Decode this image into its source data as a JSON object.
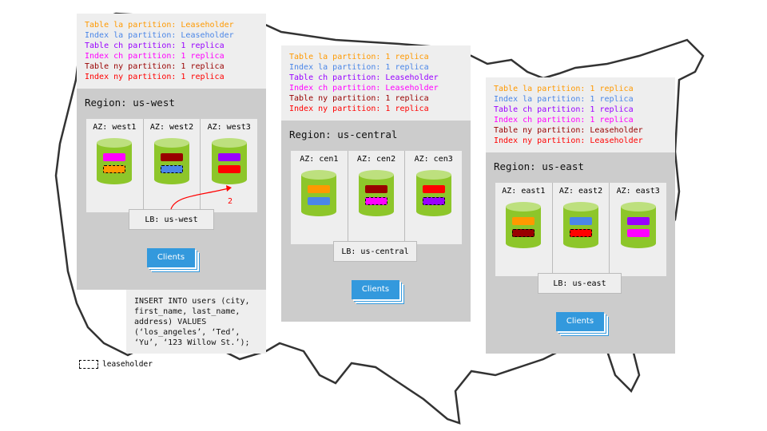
{
  "colors": {
    "la_table": "#ff9900",
    "la_index": "#4a86e8",
    "ch_table": "#9900ff",
    "ch_index": "#ff00ff",
    "ny_table": "#990000",
    "ny_index": "#ff0000",
    "node": "#8dc62a",
    "clients": "#3399dd"
  },
  "regions": [
    {
      "id": "west",
      "title": "Region: us-west",
      "lb": "LB: us-west",
      "clients": "Clients",
      "legend": [
        {
          "text": "Table la partition: Leaseholder",
          "color": "#ff9900"
        },
        {
          "text": "Index la partition: Leaseholder",
          "color": "#4a86e8"
        },
        {
          "text": "Table ch partition: 1 replica",
          "color": "#9900ff"
        },
        {
          "text": "Index ch partition: 1 replica",
          "color": "#ff00ff"
        },
        {
          "text": "Table ny partition: 1 replica",
          "color": "#990000"
        },
        {
          "text": "Index ny partition: 1 replica",
          "color": "#ff0000"
        }
      ],
      "azs": [
        {
          "label": "AZ: west1",
          "parts": [
            {
              "color": "#ff00ff",
              "leaseholder": false
            },
            {
              "color": "#ff9900",
              "leaseholder": true
            }
          ]
        },
        {
          "label": "AZ: west2",
          "parts": [
            {
              "color": "#990000",
              "leaseholder": false
            },
            {
              "color": "#4a86e8",
              "leaseholder": true
            }
          ]
        },
        {
          "label": "AZ: west3",
          "parts": [
            {
              "color": "#9900ff",
              "leaseholder": false
            },
            {
              "color": "#ff0000",
              "leaseholder": false
            }
          ]
        }
      ]
    },
    {
      "id": "central",
      "title": "Region: us-central",
      "lb": "LB: us-central",
      "clients": "Clients",
      "legend": [
        {
          "text": "Table la partition: 1 replica",
          "color": "#ff9900"
        },
        {
          "text": "Index la partition: 1 replica",
          "color": "#4a86e8"
        },
        {
          "text": "Table ch partition: Leaseholder",
          "color": "#9900ff"
        },
        {
          "text": "Index ch partition: Leaseholder",
          "color": "#ff00ff"
        },
        {
          "text": "Table ny partition: 1 replica",
          "color": "#990000"
        },
        {
          "text": "Index ny partition: 1 replica",
          "color": "#ff0000"
        }
      ],
      "azs": [
        {
          "label": "AZ: cen1",
          "parts": [
            {
              "color": "#ff9900",
              "leaseholder": false
            },
            {
              "color": "#4a86e8",
              "leaseholder": false
            }
          ]
        },
        {
          "label": "AZ: cen2",
          "parts": [
            {
              "color": "#990000",
              "leaseholder": false
            },
            {
              "color": "#ff00ff",
              "leaseholder": true
            }
          ]
        },
        {
          "label": "AZ: cen3",
          "parts": [
            {
              "color": "#ff0000",
              "leaseholder": false
            },
            {
              "color": "#9900ff",
              "leaseholder": true
            }
          ]
        }
      ]
    },
    {
      "id": "east",
      "title": "Region: us-east",
      "lb": "LB: us-east",
      "clients": "Clients",
      "legend": [
        {
          "text": "Table la partition: 1 replica",
          "color": "#ff9900"
        },
        {
          "text": "Index la partition: 1 replica",
          "color": "#4a86e8"
        },
        {
          "text": "Table ch partition: 1 replica",
          "color": "#9900ff"
        },
        {
          "text": "Index ch partition: 1 replica",
          "color": "#ff00ff"
        },
        {
          "text": "Table ny partition: Leaseholder",
          "color": "#990000"
        },
        {
          "text": "Index ny partition: Leaseholder",
          "color": "#ff0000"
        }
      ],
      "azs": [
        {
          "label": "AZ: east1",
          "parts": [
            {
              "color": "#ff9900",
              "leaseholder": false
            },
            {
              "color": "#990000",
              "leaseholder": true
            }
          ]
        },
        {
          "label": "AZ: east2",
          "parts": [
            {
              "color": "#4a86e8",
              "leaseholder": false
            },
            {
              "color": "#ff0000",
              "leaseholder": true
            }
          ]
        },
        {
          "label": "AZ: east3",
          "parts": [
            {
              "color": "#9900ff",
              "leaseholder": false
            },
            {
              "color": "#ff00ff",
              "leaseholder": false
            }
          ]
        }
      ]
    }
  ],
  "arrow_label": "2",
  "sql": [
    "INSERT INTO users (city,",
    "first_name, last_name,",
    "address) VALUES",
    "(‘los_angeles’, ‘Ted’,",
    "‘Yu’, ‘123 Willow St.’);"
  ],
  "key_label": "leaseholder"
}
